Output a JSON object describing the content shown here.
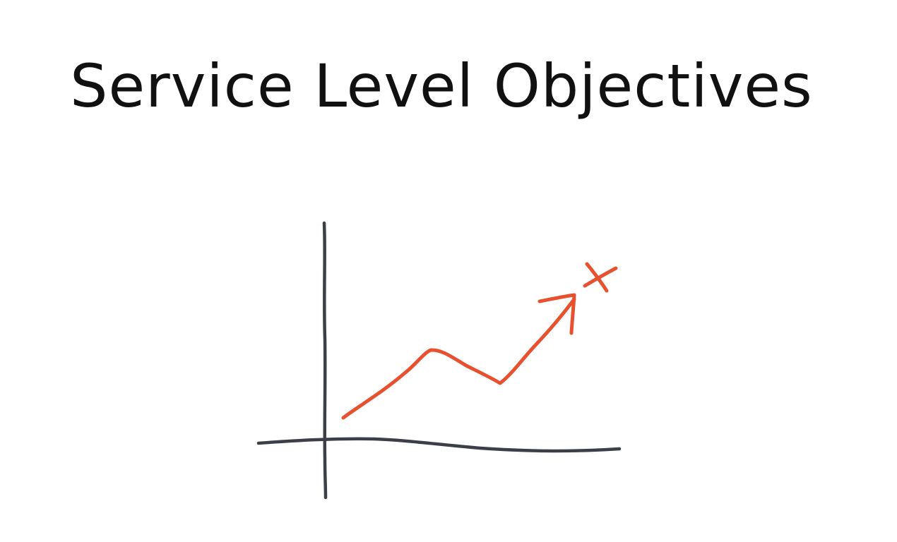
{
  "title": "Service Level Objectives",
  "colors": {
    "axis": "#3c3f47",
    "trend": "#e8512f",
    "title": "#111111",
    "background": "#ffffff"
  },
  "icons": {
    "axes": "hand-drawn-axes-icon",
    "trend": "rising-trend-arrow-icon",
    "target": "target-cross-icon"
  }
}
